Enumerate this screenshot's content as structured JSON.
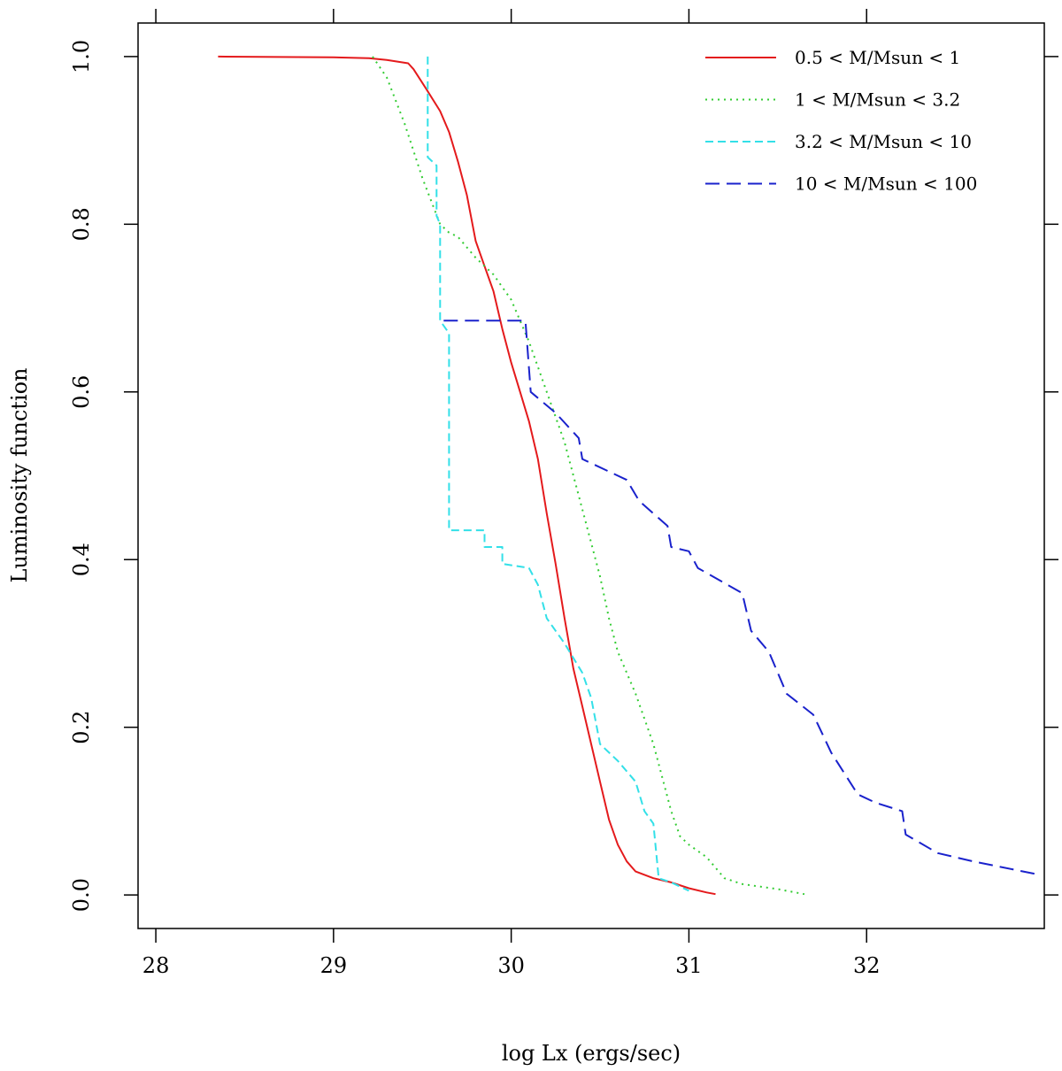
{
  "chart_data": {
    "type": "line",
    "title": "",
    "xlabel": "log Lx (ergs/sec)",
    "ylabel": "Luminosity function",
    "xlim": [
      27.9,
      33.0
    ],
    "ylim": [
      -0.04,
      1.04
    ],
    "x_ticks": [
      28,
      29,
      30,
      31,
      32
    ],
    "x_tick_labels": [
      "28",
      "29",
      "30",
      "31",
      "32"
    ],
    "y_ticks": [
      0.0,
      0.2,
      0.4,
      0.6,
      0.8,
      1.0
    ],
    "y_tick_labels": [
      "0.0",
      "0.2",
      "0.4",
      "0.6",
      "0.8",
      "1.0"
    ],
    "grid": false,
    "legend_position": "top-right",
    "series": [
      {
        "name": "0.5 < M/Msun < 1",
        "color": "#e41a1c",
        "style": "solid",
        "points": [
          [
            28.35,
            1.0
          ],
          [
            29.0,
            0.999
          ],
          [
            29.2,
            0.998
          ],
          [
            29.3,
            0.996
          ],
          [
            29.42,
            0.992
          ],
          [
            29.45,
            0.985
          ],
          [
            29.52,
            0.962
          ],
          [
            29.6,
            0.935
          ],
          [
            29.65,
            0.91
          ],
          [
            29.7,
            0.875
          ],
          [
            29.75,
            0.835
          ],
          [
            29.8,
            0.78
          ],
          [
            29.85,
            0.75
          ],
          [
            29.9,
            0.72
          ],
          [
            29.95,
            0.675
          ],
          [
            30.0,
            0.635
          ],
          [
            30.05,
            0.6
          ],
          [
            30.1,
            0.565
          ],
          [
            30.15,
            0.52
          ],
          [
            30.2,
            0.455
          ],
          [
            30.25,
            0.395
          ],
          [
            30.3,
            0.33
          ],
          [
            30.35,
            0.27
          ],
          [
            30.4,
            0.225
          ],
          [
            30.45,
            0.18
          ],
          [
            30.5,
            0.135
          ],
          [
            30.55,
            0.09
          ],
          [
            30.6,
            0.06
          ],
          [
            30.65,
            0.04
          ],
          [
            30.7,
            0.028
          ],
          [
            30.8,
            0.02
          ],
          [
            30.9,
            0.015
          ],
          [
            31.0,
            0.008
          ],
          [
            31.1,
            0.003
          ],
          [
            31.15,
            0.001
          ]
        ]
      },
      {
        "name": "1 < M/Msun < 3.2",
        "color": "#33cc33",
        "style": "dotted",
        "points": [
          [
            29.22,
            1.0
          ],
          [
            29.3,
            0.975
          ],
          [
            29.4,
            0.92
          ],
          [
            29.5,
            0.855
          ],
          [
            29.6,
            0.8
          ],
          [
            29.65,
            0.79
          ],
          [
            29.7,
            0.785
          ],
          [
            29.8,
            0.76
          ],
          [
            29.9,
            0.74
          ],
          [
            30.0,
            0.71
          ],
          [
            30.1,
            0.66
          ],
          [
            30.2,
            0.6
          ],
          [
            30.3,
            0.54
          ],
          [
            30.4,
            0.46
          ],
          [
            30.45,
            0.42
          ],
          [
            30.5,
            0.38
          ],
          [
            30.55,
            0.33
          ],
          [
            30.6,
            0.29
          ],
          [
            30.7,
            0.24
          ],
          [
            30.8,
            0.18
          ],
          [
            30.9,
            0.1
          ],
          [
            30.95,
            0.07
          ],
          [
            31.0,
            0.06
          ],
          [
            31.1,
            0.045
          ],
          [
            31.2,
            0.02
          ],
          [
            31.3,
            0.013
          ],
          [
            31.5,
            0.007
          ],
          [
            31.65,
            0.001
          ]
        ]
      },
      {
        "name": "3.2 < M/Msun < 10",
        "color": "#33e0e8",
        "style": "dashed",
        "points": [
          [
            29.53,
            1.0
          ],
          [
            29.53,
            0.88
          ],
          [
            29.58,
            0.87
          ],
          [
            29.58,
            0.81
          ],
          [
            29.6,
            0.8
          ],
          [
            29.6,
            0.685
          ],
          [
            29.65,
            0.67
          ],
          [
            29.65,
            0.435
          ],
          [
            29.85,
            0.435
          ],
          [
            29.85,
            0.415
          ],
          [
            29.95,
            0.415
          ],
          [
            29.95,
            0.395
          ],
          [
            30.1,
            0.39
          ],
          [
            30.15,
            0.37
          ],
          [
            30.2,
            0.33
          ],
          [
            30.3,
            0.3
          ],
          [
            30.4,
            0.265
          ],
          [
            30.45,
            0.235
          ],
          [
            30.5,
            0.18
          ],
          [
            30.6,
            0.16
          ],
          [
            30.7,
            0.135
          ],
          [
            30.75,
            0.1
          ],
          [
            30.8,
            0.085
          ],
          [
            30.83,
            0.02
          ],
          [
            30.9,
            0.015
          ],
          [
            31.0,
            0.005
          ]
        ]
      },
      {
        "name": "10 < M/Msun < 100",
        "color": "#1a22cc",
        "style": "longdash",
        "points": [
          [
            29.62,
            0.685
          ],
          [
            30.08,
            0.685
          ],
          [
            30.11,
            0.6
          ],
          [
            30.25,
            0.575
          ],
          [
            30.38,
            0.545
          ],
          [
            30.4,
            0.52
          ],
          [
            30.65,
            0.495
          ],
          [
            30.72,
            0.47
          ],
          [
            30.88,
            0.44
          ],
          [
            30.9,
            0.415
          ],
          [
            31.0,
            0.41
          ],
          [
            31.05,
            0.39
          ],
          [
            31.3,
            0.36
          ],
          [
            31.35,
            0.315
          ],
          [
            31.45,
            0.29
          ],
          [
            31.55,
            0.24
          ],
          [
            31.7,
            0.215
          ],
          [
            31.8,
            0.17
          ],
          [
            31.95,
            0.12
          ],
          [
            32.05,
            0.11
          ],
          [
            32.2,
            0.1
          ],
          [
            32.22,
            0.072
          ],
          [
            32.4,
            0.05
          ],
          [
            32.6,
            0.04
          ],
          [
            32.95,
            0.025
          ]
        ]
      }
    ]
  }
}
